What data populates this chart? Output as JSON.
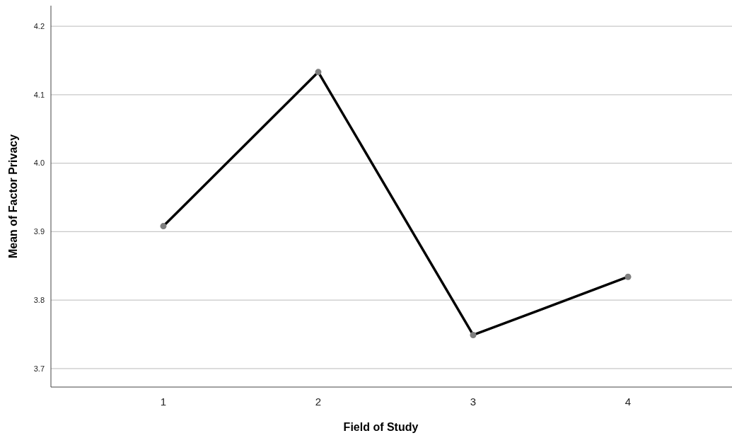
{
  "chart_data": {
    "type": "line",
    "xlabel": "Field of Study",
    "ylabel": "Mean of Factor Privacy",
    "categories": [
      "1",
      "2",
      "3",
      "4"
    ],
    "series": [
      {
        "color": "#000000",
        "values": [
          3.908,
          4.133,
          3.749,
          3.834
        ]
      }
    ],
    "ylim": [
      3.673,
      4.23
    ],
    "yticks": [
      3.7,
      3.8,
      3.9,
      {
        "value": 4,
        "label": "4.0"
      },
      4.1,
      4.2
    ],
    "grid": "y",
    "marker": "circle",
    "line_style": "solid"
  }
}
